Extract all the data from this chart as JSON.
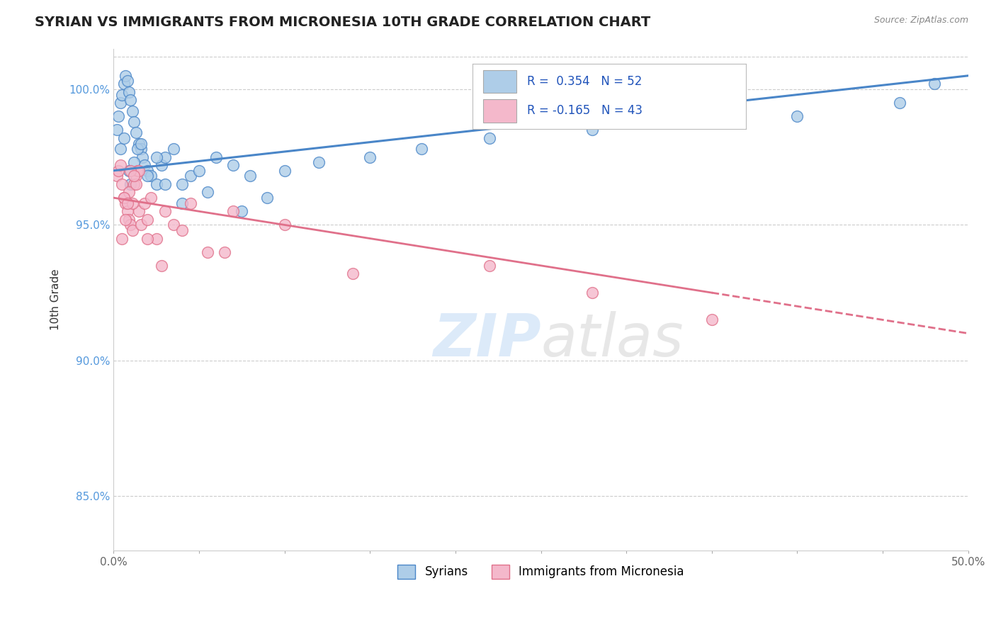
{
  "title": "SYRIAN VS IMMIGRANTS FROM MICRONESIA 10TH GRADE CORRELATION CHART",
  "source": "Source: ZipAtlas.com",
  "ylabel": "10th Grade",
  "xlim": [
    0.0,
    50.0
  ],
  "ylim": [
    83.0,
    101.5
  ],
  "blue_R": 0.354,
  "blue_N": 52,
  "pink_R": -0.165,
  "pink_N": 43,
  "blue_color": "#aecde8",
  "pink_color": "#f4b8cb",
  "blue_line_color": "#4a86c8",
  "pink_line_color": "#e0708a",
  "blue_scatter_x": [
    0.2,
    0.3,
    0.4,
    0.5,
    0.6,
    0.7,
    0.8,
    0.9,
    1.0,
    1.1,
    1.2,
    1.3,
    1.5,
    1.6,
    1.7,
    1.8,
    2.0,
    2.2,
    2.5,
    2.8,
    3.0,
    3.5,
    4.0,
    4.5,
    5.0,
    6.0,
    7.0,
    8.0,
    10.0,
    12.0,
    15.0,
    18.0,
    22.0,
    28.0,
    35.0,
    40.0,
    46.0,
    48.0,
    0.4,
    0.6,
    0.9,
    1.0,
    1.2,
    1.4,
    1.6,
    2.0,
    2.5,
    3.0,
    4.0,
    5.5,
    7.5,
    9.0
  ],
  "blue_scatter_y": [
    98.5,
    99.0,
    99.5,
    99.8,
    100.2,
    100.5,
    100.3,
    99.9,
    99.6,
    99.2,
    98.8,
    98.4,
    98.0,
    97.8,
    97.5,
    97.2,
    97.0,
    96.8,
    96.5,
    97.2,
    97.5,
    97.8,
    96.5,
    96.8,
    97.0,
    97.5,
    97.2,
    96.8,
    97.0,
    97.3,
    97.5,
    97.8,
    98.2,
    98.5,
    98.8,
    99.0,
    99.5,
    100.2,
    97.8,
    98.2,
    97.0,
    96.5,
    97.3,
    97.8,
    98.0,
    96.8,
    97.5,
    96.5,
    95.8,
    96.2,
    95.5,
    96.0
  ],
  "pink_scatter_x": [
    0.2,
    0.3,
    0.4,
    0.5,
    0.6,
    0.7,
    0.8,
    0.9,
    1.0,
    1.1,
    1.2,
    1.3,
    1.4,
    1.5,
    1.6,
    1.8,
    2.0,
    2.2,
    2.5,
    3.0,
    3.5,
    4.5,
    5.5,
    7.0,
    10.0,
    0.5,
    0.7,
    0.9,
    1.1,
    1.3,
    1.5,
    2.0,
    2.8,
    4.0,
    6.5,
    14.0,
    22.0,
    28.0,
    35.0,
    0.6,
    0.8,
    1.0,
    1.2
  ],
  "pink_scatter_y": [
    96.8,
    97.0,
    97.2,
    96.5,
    96.0,
    95.8,
    95.5,
    95.2,
    95.0,
    94.8,
    96.5,
    96.8,
    97.0,
    95.5,
    95.0,
    95.8,
    95.2,
    96.0,
    94.5,
    95.5,
    95.0,
    95.8,
    94.0,
    95.5,
    95.0,
    94.5,
    95.2,
    96.2,
    95.8,
    96.5,
    97.0,
    94.5,
    93.5,
    94.8,
    94.0,
    93.2,
    93.5,
    92.5,
    91.5,
    96.0,
    95.8,
    97.0,
    96.8
  ],
  "blue_trend_x0": 0,
  "blue_trend_x1": 50,
  "blue_trend_y0": 97.0,
  "blue_trend_y1": 100.5,
  "pink_trend_x0": 0,
  "pink_trend_x1": 50,
  "pink_trend_y0": 96.0,
  "pink_trend_y1": 91.0,
  "pink_solid_end": 35,
  "title_fontsize": 14,
  "source_fontsize": 9,
  "tick_fontsize": 11,
  "ylabel_fontsize": 11,
  "watermark_zip_color": "#c5ddf5",
  "watermark_atlas_color": "#d8d8d8",
  "grid_color": "#cccccc",
  "spine_color": "#cccccc",
  "yaxis_tick_color": "#5599dd",
  "xaxis_tick_color": "#666666"
}
